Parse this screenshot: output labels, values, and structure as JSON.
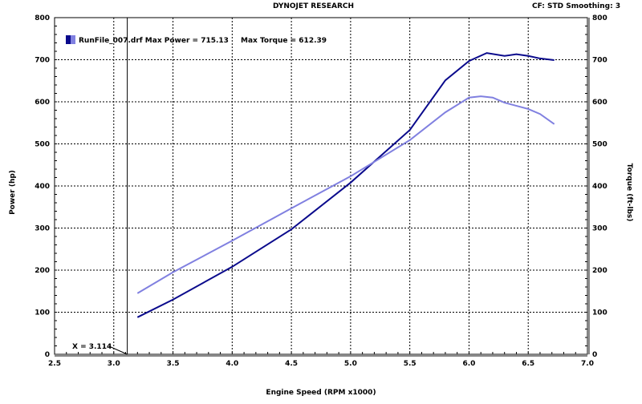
{
  "header": {
    "title": "DYNOJET RESEARCH",
    "settings": "CF: STD  Smoothing: 3"
  },
  "chart_data": {
    "type": "line",
    "xlabel": "Engine Speed (RPM x1000)",
    "ylabel": "Power (hp)",
    "y2label": "Torque (ft-lbs)",
    "xlim": [
      2.5,
      7.0
    ],
    "ylim": [
      0,
      800
    ],
    "y2lim": [
      0,
      800
    ],
    "xticks": [
      "2.5",
      "3.0",
      "3.5",
      "4.0",
      "4.5",
      "5.0",
      "5.5",
      "6.0",
      "6.5",
      "7.0"
    ],
    "yticks": [
      "0",
      "100",
      "200",
      "300",
      "400",
      "500",
      "600",
      "700",
      "800"
    ],
    "grid": true,
    "legend": {
      "text": "RunFile_007.drf Max Power = 715.13",
      "extra": "Max Torque = 612.39",
      "placement": "top-left"
    },
    "cursor": {
      "x": 3.114,
      "label": "X = 3.114"
    },
    "series": [
      {
        "name": "Power",
        "color": "#0a0a8c",
        "x": [
          3.2,
          3.5,
          4.0,
          4.5,
          5.0,
          5.5,
          5.8,
          6.0,
          6.15,
          6.3,
          6.4,
          6.5,
          6.6,
          6.72
        ],
        "y": [
          88,
          130,
          208,
          297,
          408,
          533,
          651,
          697,
          716,
          709,
          713,
          709,
          703,
          699
        ]
      },
      {
        "name": "Torque",
        "color": "#8080e0",
        "x": [
          3.2,
          3.5,
          4.0,
          4.5,
          5.0,
          5.5,
          5.8,
          6.0,
          6.1,
          6.2,
          6.3,
          6.5,
          6.6,
          6.72
        ],
        "y": [
          145,
          195,
          270,
          347,
          423,
          509,
          575,
          610,
          613,
          610,
          598,
          583,
          571,
          547
        ]
      }
    ]
  }
}
